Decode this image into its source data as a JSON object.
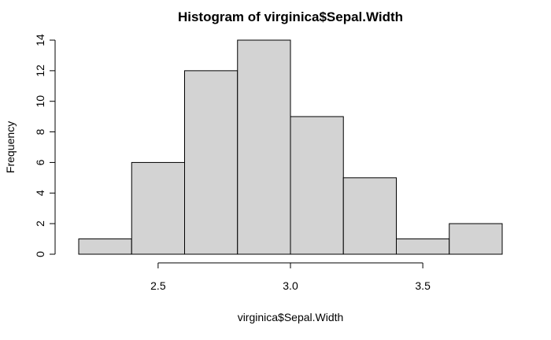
{
  "chart_data": {
    "type": "bar",
    "title": "Histogram of virginica$Sepal.Width",
    "xlabel": "virginica$Sepal.Width",
    "ylabel": "Frequency",
    "bins": [
      {
        "x0": 2.2,
        "x1": 2.4,
        "count": 1
      },
      {
        "x0": 2.4,
        "x1": 2.6,
        "count": 6
      },
      {
        "x0": 2.6,
        "x1": 2.8,
        "count": 12
      },
      {
        "x0": 2.8,
        "x1": 3.0,
        "count": 14
      },
      {
        "x0": 3.0,
        "x1": 3.2,
        "count": 9
      },
      {
        "x0": 3.2,
        "x1": 3.4,
        "count": 5
      },
      {
        "x0": 3.4,
        "x1": 3.6,
        "count": 1
      },
      {
        "x0": 3.6,
        "x1": 3.8,
        "count": 2
      }
    ],
    "xlim": [
      2.2,
      3.8
    ],
    "ylim": [
      0,
      14
    ],
    "xticks": [
      "2.5",
      "3.0",
      "3.5"
    ],
    "yticks": [
      "0",
      "2",
      "4",
      "6",
      "8",
      "10",
      "12",
      "14"
    ],
    "grid": false,
    "bar_fill": "#d3d3d3",
    "bar_stroke": "#000000"
  }
}
